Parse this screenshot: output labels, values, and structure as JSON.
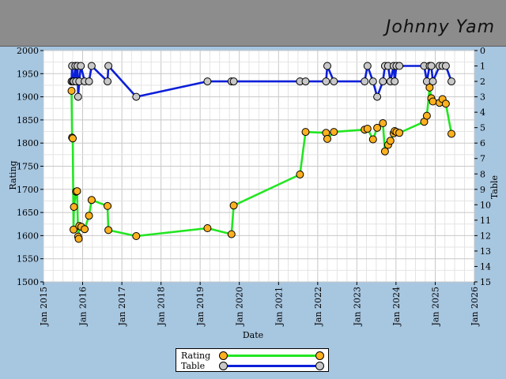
{
  "header": {
    "player_name": "Johnny Yam",
    "background": "#8c8c8c"
  },
  "colors": {
    "page_bg": "#a7c6e0",
    "rating_line": "#22e622",
    "rating_marker": "#ffb11f",
    "table_line": "#0b1fd8",
    "table_marker": "#c8c8c8"
  },
  "chart_data": {
    "type": "line",
    "xlabel": "Date",
    "ylabel_left": "Rating",
    "ylabel_right": "Table",
    "x_range": [
      "2015-01-01",
      "2026-01-01"
    ],
    "y_left_range": [
      1500,
      2000
    ],
    "y_right_range": [
      0,
      15
    ],
    "y_right_inverted": true,
    "grid": true,
    "x_ticks": [
      "Jan 2015",
      "Jan 2016",
      "Jan 2017",
      "Jan 2018",
      "Jan 2019",
      "Jan 2020",
      "Jan 2021",
      "Jan 2022",
      "Jan 2023",
      "Jan 2024",
      "Jan 2025",
      "Jan 2026"
    ],
    "y_left_ticks": [
      1500,
      1550,
      1600,
      1650,
      1700,
      1750,
      1800,
      1850,
      1900,
      1950,
      2000
    ],
    "y_right_ticks": [
      0,
      1,
      2,
      3,
      4,
      5,
      6,
      7,
      8,
      9,
      10,
      11,
      12,
      13,
      14,
      15
    ],
    "legend_position": "bottom-center",
    "series": [
      {
        "name": "Rating",
        "axis": "left",
        "points": [
          [
            "2015-09-20",
            1913
          ],
          [
            "2015-09-25",
            1812
          ],
          [
            "2015-10-01",
            1810
          ],
          [
            "2015-10-08",
            1613
          ],
          [
            "2015-10-12",
            1662
          ],
          [
            "2015-11-01",
            1695
          ],
          [
            "2015-11-10",
            1696
          ],
          [
            "2015-11-20",
            1598
          ],
          [
            "2015-11-25",
            1593
          ],
          [
            "2015-12-01",
            1621
          ],
          [
            "2015-12-20",
            1619
          ],
          [
            "2016-01-20",
            1614
          ],
          [
            "2016-03-01",
            1643
          ],
          [
            "2016-03-25",
            1677
          ],
          [
            "2016-08-20",
            1664
          ],
          [
            "2016-08-28",
            1612
          ],
          [
            "2017-05-15",
            1599
          ],
          [
            "2019-03-10",
            1616
          ],
          [
            "2019-10-20",
            1603
          ],
          [
            "2019-11-10",
            1665
          ],
          [
            "2021-07-20",
            1732
          ],
          [
            "2021-09-10",
            1824
          ],
          [
            "2022-03-20",
            1822
          ],
          [
            "2022-04-01",
            1809
          ],
          [
            "2022-06-01",
            1824
          ],
          [
            "2023-03-15",
            1829
          ],
          [
            "2023-04-10",
            1831
          ],
          [
            "2023-06-01",
            1808
          ],
          [
            "2023-07-10",
            1833
          ],
          [
            "2023-09-01",
            1843
          ],
          [
            "2023-09-20",
            1782
          ],
          [
            "2023-10-20",
            1796
          ],
          [
            "2023-11-10",
            1805
          ],
          [
            "2023-12-10",
            1821
          ],
          [
            "2023-12-20",
            1826
          ],
          [
            "2024-01-05",
            1824
          ],
          [
            "2024-02-01",
            1822
          ],
          [
            "2024-09-20",
            1846
          ],
          [
            "2024-10-15",
            1859
          ],
          [
            "2024-11-10",
            1920
          ],
          [
            "2024-11-25",
            1897
          ],
          [
            "2024-12-10",
            1890
          ],
          [
            "2025-02-10",
            1887
          ],
          [
            "2025-03-10",
            1895
          ],
          [
            "2025-04-10",
            1885
          ],
          [
            "2025-06-01",
            1820
          ]
        ]
      },
      {
        "name": "Table",
        "axis": "right",
        "points": [
          [
            "2015-09-20",
            2
          ],
          [
            "2015-09-25",
            1
          ],
          [
            "2015-10-01",
            2
          ],
          [
            "2015-10-10",
            2
          ],
          [
            "2015-10-25",
            1
          ],
          [
            "2015-11-01",
            2
          ],
          [
            "2015-11-15",
            1
          ],
          [
            "2015-11-20",
            3
          ],
          [
            "2015-12-01",
            2
          ],
          [
            "2015-12-15",
            1
          ],
          [
            "2016-01-20",
            2
          ],
          [
            "2016-03-01",
            2
          ],
          [
            "2016-03-25",
            1
          ],
          [
            "2016-08-20",
            2
          ],
          [
            "2016-08-28",
            1
          ],
          [
            "2017-05-15",
            3
          ],
          [
            "2019-03-10",
            2
          ],
          [
            "2019-10-20",
            2
          ],
          [
            "2019-11-10",
            2
          ],
          [
            "2021-07-20",
            2
          ],
          [
            "2021-09-10",
            2
          ],
          [
            "2022-03-20",
            2
          ],
          [
            "2022-04-01",
            1
          ],
          [
            "2022-06-01",
            2
          ],
          [
            "2023-03-15",
            2
          ],
          [
            "2023-04-10",
            1
          ],
          [
            "2023-06-01",
            2
          ],
          [
            "2023-07-10",
            3
          ],
          [
            "2023-09-01",
            2
          ],
          [
            "2023-09-20",
            1
          ],
          [
            "2023-10-20",
            1
          ],
          [
            "2023-11-10",
            2
          ],
          [
            "2023-12-10",
            1
          ],
          [
            "2023-12-20",
            2
          ],
          [
            "2024-01-05",
            1
          ],
          [
            "2024-02-01",
            1
          ],
          [
            "2024-09-20",
            1
          ],
          [
            "2024-10-15",
            2
          ],
          [
            "2024-11-10",
            1
          ],
          [
            "2024-11-25",
            1
          ],
          [
            "2024-12-10",
            2
          ],
          [
            "2025-02-10",
            1
          ],
          [
            "2025-03-10",
            1
          ],
          [
            "2025-04-10",
            1
          ],
          [
            "2025-06-01",
            2
          ]
        ]
      }
    ]
  },
  "legend": {
    "rating_label": "Rating",
    "table_label": "Table"
  }
}
